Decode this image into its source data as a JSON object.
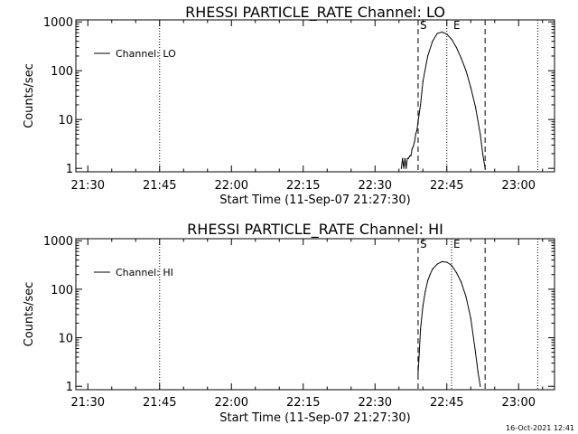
{
  "chart_data": [
    {
      "type": "line",
      "title": "RHESSI PARTICLE_RATE Channel: LO",
      "xlabel": "Start Time (11-Sep-07 21:27:30)",
      "ylabel": "Counts/sec",
      "x_ticks": [
        "21:30",
        "21:45",
        "22:00",
        "22:15",
        "22:30",
        "22:45",
        "23:00"
      ],
      "y_ticks": [
        "1",
        "10",
        "100",
        "1000"
      ],
      "yscale": "log",
      "xlim": [
        "21:27:30",
        "23:07:30"
      ],
      "ylim": [
        0.85,
        1100
      ],
      "grid": false,
      "legend": {
        "position": "top-left",
        "entries": [
          "Channel: LO"
        ]
      },
      "dotted_lines_x": [
        "21:45",
        "22:45",
        "23:04"
      ],
      "dashed_lines_x": [
        {
          "x": "22:39",
          "label": "S"
        },
        {
          "x": "22:53",
          "label": ""
        }
      ],
      "event_markers": [
        {
          "x": "22:46",
          "label": "E"
        }
      ],
      "series": [
        {
          "name": "Channel: LO",
          "x": [
            "22:35:30",
            "22:35:45",
            "22:36:00",
            "22:36:15",
            "22:36:30",
            "22:36:45",
            "22:37:00",
            "22:37:15",
            "22:37:30",
            "22:37:45",
            "22:38:00",
            "22:38:15",
            "22:38:30",
            "22:38:45",
            "22:39:00",
            "22:39:30",
            "22:40:00",
            "22:41:00",
            "22:42:00",
            "22:43:00",
            "22:44:00",
            "22:45:00",
            "22:46:00",
            "22:47:00",
            "22:48:00",
            "22:49:00",
            "22:50:00",
            "22:51:00",
            "22:52:00",
            "22:52:30",
            "22:53:00"
          ],
          "values": [
            1.0,
            1.6,
            1.0,
            1.6,
            1.0,
            1.6,
            1.6,
            1.8,
            1.8,
            2.5,
            2.8,
            3.5,
            5,
            6,
            9,
            20,
            60,
            200,
            400,
            580,
            620,
            560,
            440,
            300,
            180,
            100,
            45,
            18,
            5,
            2,
            1
          ]
        }
      ]
    },
    {
      "type": "line",
      "title": "RHESSI PARTICLE_RATE Channel: HI",
      "xlabel": "Start Time (11-Sep-07 21:27:30)",
      "ylabel": "Counts/sec",
      "x_ticks": [
        "21:30",
        "21:45",
        "22:00",
        "22:15",
        "22:30",
        "22:45",
        "23:00"
      ],
      "y_ticks": [
        "1",
        "10",
        "100",
        "1000"
      ],
      "yscale": "log",
      "xlim": [
        "21:27:30",
        "23:07:30"
      ],
      "ylim": [
        0.85,
        1100
      ],
      "grid": false,
      "legend": {
        "position": "top-left",
        "entries": [
          "Channel: HI"
        ]
      },
      "dotted_lines_x": [
        "21:45",
        "22:46",
        "23:04"
      ],
      "dashed_lines_x": [
        {
          "x": "22:39",
          "label": "S"
        },
        {
          "x": "22:53",
          "label": ""
        }
      ],
      "event_markers": [
        {
          "x": "22:46",
          "label": "E"
        }
      ],
      "series": [
        {
          "name": "Channel: HI",
          "x": [
            "22:39:00",
            "22:39:15",
            "22:39:30",
            "22:40:00",
            "22:40:30",
            "22:41:00",
            "22:41:30",
            "22:42:00",
            "22:43:00",
            "22:44:00",
            "22:45:00",
            "22:46:00",
            "22:47:00",
            "22:48:00",
            "22:49:00",
            "22:50:00",
            "22:51:00",
            "22:51:30",
            "22:52:00"
          ],
          "values": [
            1.8,
            5,
            15,
            45,
            90,
            150,
            200,
            260,
            330,
            370,
            360,
            310,
            220,
            140,
            70,
            25,
            5,
            2,
            1
          ]
        }
      ]
    }
  ],
  "footer": {
    "timestamp": "16-Oct-2021 12:41"
  }
}
